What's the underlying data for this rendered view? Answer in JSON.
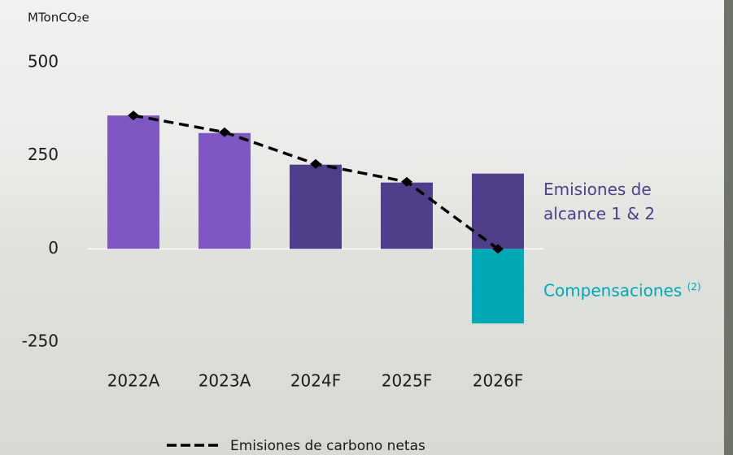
{
  "chart_data": {
    "type": "bar",
    "y_label": "MTonCO₂e",
    "categories": [
      "2022A",
      "2023A",
      "2024F",
      "2025F",
      "2026F"
    ],
    "ylim": [
      -250,
      500
    ],
    "yticks": [
      500,
      250,
      0,
      -250
    ],
    "series": [
      {
        "name": "Emisiones de alcance 1 & 2",
        "color": "#4f3f8a",
        "colors": [
          "#7e57c2",
          "#7e57c2",
          "#4f3f8a",
          "#4f3f8a",
          "#4f3f8a"
        ],
        "values": [
          358,
          311,
          226,
          178,
          202
        ]
      },
      {
        "name": "Compensaciones",
        "name_note": "(2)",
        "color": "#00a9b5",
        "values": [
          null,
          null,
          null,
          null,
          -200
        ]
      },
      {
        "name": "Emisiones de carbono netas",
        "type": "line",
        "color": "#000000",
        "values": [
          358,
          313,
          228,
          180,
          0
        ]
      }
    ]
  }
}
